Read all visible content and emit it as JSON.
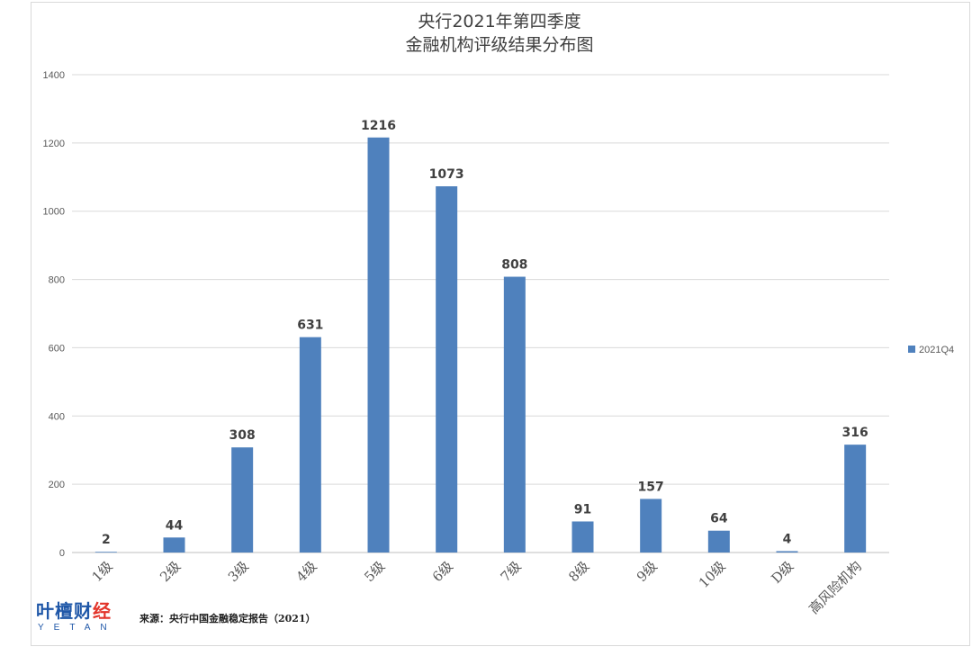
{
  "chart_data": {
    "type": "bar",
    "title_lines": [
      "央行2021年第四季度",
      "金融机构评级结果分布图"
    ],
    "categories": [
      "1级",
      "2级",
      "3级",
      "4级",
      "5级",
      "6级",
      "7级",
      "8级",
      "9级",
      "10级",
      "D级",
      "高风险机构"
    ],
    "series": [
      {
        "name": "2021Q4",
        "values": [
          2,
          44,
          308,
          631,
          1216,
          1073,
          808,
          91,
          157,
          64,
          4,
          316
        ]
      }
    ],
    "ylim": [
      0,
      1400
    ],
    "yticks": [
      "0",
      "200",
      "400",
      "600",
      "800",
      "1000",
      "1200",
      "1400"
    ],
    "grid": true,
    "legend_position": "right",
    "bar_color": "#4f81bd"
  },
  "source_text": "来源：央行中国金融稳定报告（2021）",
  "brand": {
    "cn_main": "叶檀财",
    "cn_accent": "经",
    "en": "YETAN"
  }
}
